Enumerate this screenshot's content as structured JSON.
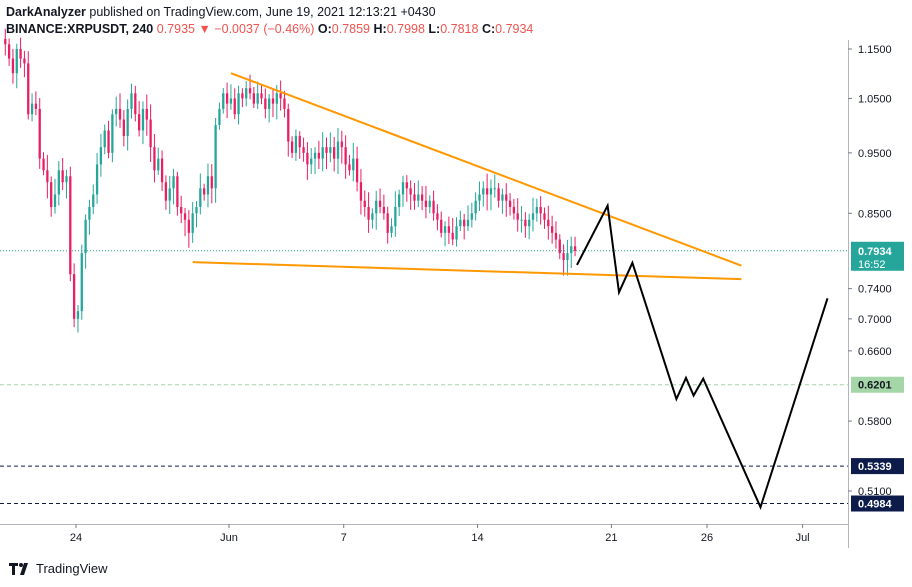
{
  "header": {
    "publisher": "DarkAnalyzer",
    "published_text": "published on TradingView.com, June 19, 2021 12:13:21 +0430",
    "symbol": "BINANCE:XRPUSDT, 240",
    "last": "0.7935",
    "change": "▼ −0.0037 (−0.46%)",
    "o_label": "O:",
    "o_value": "0.7859",
    "h_label": "H:",
    "h_value": "0.7998",
    "l_label": "L:",
    "l_value": "0.7818",
    "c_label": "C:",
    "c_value": "0.7934"
  },
  "footer": {
    "brand": "TradingView"
  },
  "colors": {
    "up": "#26a69a",
    "down": "#e91e63",
    "triangle": "#ff9800",
    "projection": "#000000",
    "price_tag": "#26a69a",
    "green_level": "#a5d6a7",
    "navy_level": "#0d1b4b"
  },
  "chart_data": {
    "type": "candlestick",
    "symbol": "BINANCE:XRPUSDT",
    "timeframe": "240",
    "y_axis": {
      "scale": "log",
      "ticks": [
        "1.1500",
        "1.0500",
        "0.9500",
        "0.8500",
        "0.7400",
        "0.7000",
        "0.6600",
        "0.5800",
        "0.5100"
      ],
      "tick_values": [
        1.15,
        1.05,
        0.95,
        0.85,
        0.74,
        0.7,
        0.66,
        0.58,
        0.51
      ]
    },
    "x_axis": {
      "ticks": [
        "24",
        "Jun",
        "7",
        "14",
        "21",
        "26",
        "Jul"
      ],
      "tick_days": [
        -8,
        0,
        6,
        13,
        20,
        25,
        30
      ]
    },
    "current_price": {
      "value": "0.7934",
      "countdown": "16:52"
    },
    "levels": [
      {
        "label": "0.6201",
        "value": 0.6201,
        "style": "green"
      },
      {
        "label": "0.5339",
        "value": 0.5339,
        "style": "navy"
      },
      {
        "label": "0.4984",
        "value": 0.4984,
        "style": "navy"
      }
    ],
    "triangle": {
      "upper": [
        [
          0.1,
          1.1
        ],
        [
          26.8,
          0.772
        ]
      ],
      "lower": [
        [
          -1.9,
          0.777
        ],
        [
          26.8,
          0.753
        ]
      ]
    },
    "projection": [
      [
        18.2,
        0.773
      ],
      [
        19.8,
        0.862
      ],
      [
        20.4,
        0.735
      ],
      [
        21.1,
        0.776
      ],
      [
        23.4,
        0.604
      ],
      [
        23.9,
        0.628
      ],
      [
        24.3,
        0.608
      ],
      [
        24.8,
        0.627
      ],
      [
        27.8,
        0.495
      ],
      [
        31.3,
        0.727
      ]
    ],
    "candles_close": [
      1.16,
      1.13,
      1.1,
      1.15,
      1.13,
      1.12,
      1.02,
      1.04,
      1.03,
      0.94,
      0.92,
      0.9,
      0.86,
      0.88,
      0.92,
      0.9,
      0.91,
      0.76,
      0.7,
      0.71,
      0.79,
      0.84,
      0.86,
      0.88,
      0.93,
      0.96,
      0.99,
      0.95,
      1.02,
      1.03,
      1.01,
      0.98,
      1.03,
      1.06,
      1.02,
      0.99,
      1.03,
      1.01,
      0.96,
      0.92,
      0.94,
      0.9,
      0.87,
      0.89,
      0.91,
      0.86,
      0.85,
      0.84,
      0.82,
      0.85,
      0.86,
      0.89,
      0.88,
      0.91,
      0.89,
      1.0,
      1.03,
      1.06,
      1.04,
      1.05,
      1.02,
      1.06,
      1.05,
      1.07,
      1.06,
      1.04,
      1.06,
      1.05,
      1.03,
      1.05,
      1.04,
      1.06,
      1.05,
      1.03,
      0.97,
      0.95,
      0.98,
      0.96,
      0.95,
      0.93,
      0.94,
      0.95,
      0.94,
      0.96,
      0.95,
      0.96,
      0.94,
      0.97,
      0.96,
      0.93,
      0.92,
      0.94,
      0.9,
      0.87,
      0.86,
      0.84,
      0.85,
      0.87,
      0.86,
      0.85,
      0.82,
      0.83,
      0.86,
      0.88,
      0.9,
      0.89,
      0.88,
      0.87,
      0.88,
      0.87,
      0.86,
      0.87,
      0.85,
      0.84,
      0.82,
      0.83,
      0.82,
      0.81,
      0.83,
      0.84,
      0.83,
      0.84,
      0.85,
      0.87,
      0.88,
      0.89,
      0.88,
      0.89,
      0.89,
      0.87,
      0.88,
      0.87,
      0.86,
      0.85,
      0.84,
      0.84,
      0.83,
      0.84,
      0.85,
      0.86,
      0.85,
      0.84,
      0.83,
      0.82,
      0.81,
      0.79,
      0.78,
      0.79,
      0.8,
      0.7934
    ]
  }
}
